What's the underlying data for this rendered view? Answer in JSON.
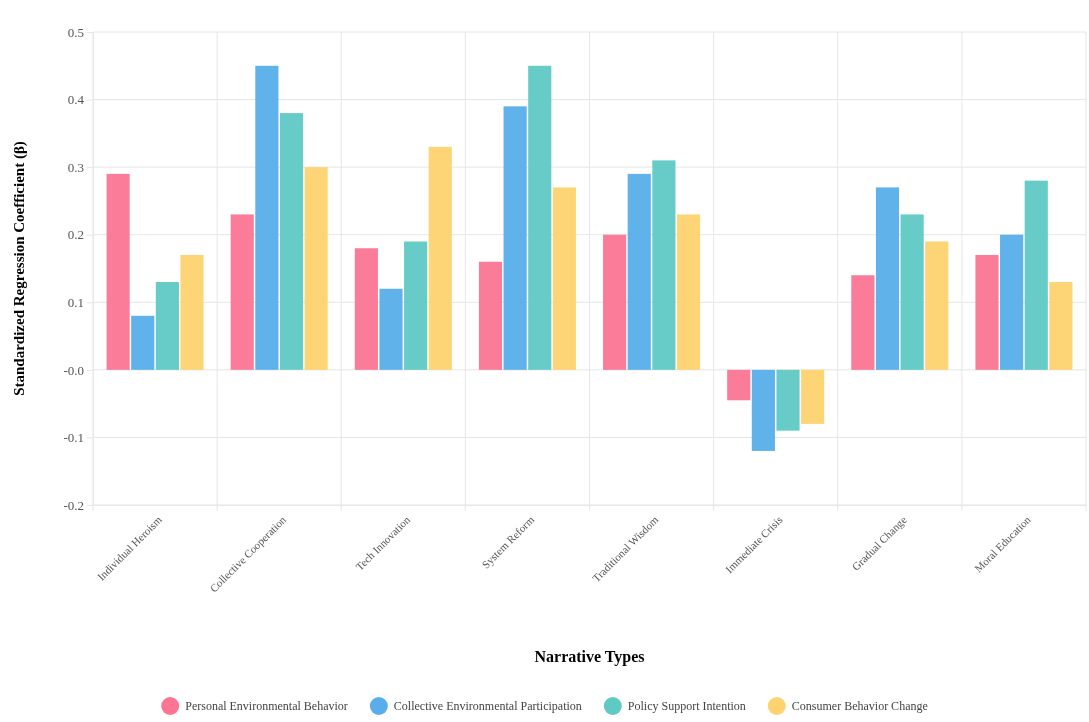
{
  "chart_data": {
    "type": "bar",
    "xlabel": "Narrative Types",
    "ylabel": "Standardized Regression Coefficient (β)",
    "categories": [
      "Individual Heroism",
      "Collective Cooperation",
      "Tech Innovation",
      "System Reform",
      "Traditional Wisdom",
      "Immediate Crisis",
      "Gradual Change",
      "Moral Education"
    ],
    "series": [
      {
        "name": "Personal Environmental Behavior",
        "color": "#fb7593",
        "values": [
          0.29,
          0.23,
          0.18,
          0.16,
          0.2,
          -0.045,
          0.14,
          0.17
        ]
      },
      {
        "name": "Collective Environmental Participation",
        "color": "#57aeea",
        "values": [
          0.08,
          0.45,
          0.12,
          0.39,
          0.29,
          -0.12,
          0.27,
          0.2
        ]
      },
      {
        "name": "Policy Support Intention",
        "color": "#5fc9c4",
        "values": [
          0.13,
          0.38,
          0.19,
          0.45,
          0.31,
          -0.09,
          0.23,
          0.28
        ]
      },
      {
        "name": "Consumer Behavior Change",
        "color": "#fdd36f",
        "values": [
          0.17,
          0.3,
          0.33,
          0.27,
          0.23,
          -0.08,
          0.19,
          0.13
        ]
      }
    ],
    "ylim": [
      -0.2,
      0.5
    ],
    "yticks": [
      -0.2,
      -0.1,
      {
        "value": 0,
        "label": "-0.0"
      },
      0.1,
      0.2,
      0.3,
      0.4,
      0.5
    ],
    "grid": true,
    "legend": "bottom"
  }
}
